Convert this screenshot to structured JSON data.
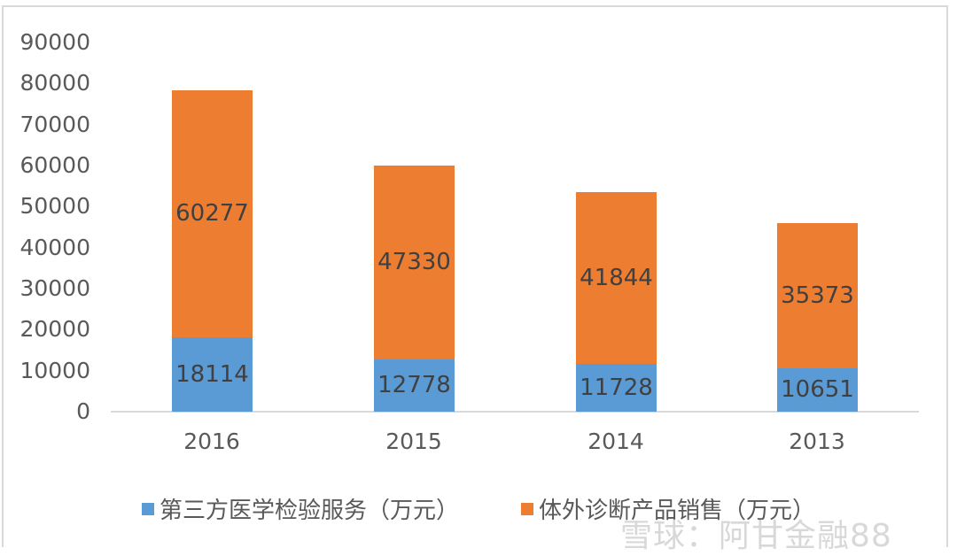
{
  "chart_data": {
    "type": "bar",
    "stacked": true,
    "title": "",
    "xlabel": "",
    "ylabel": "",
    "categories": [
      "2016",
      "2015",
      "2014",
      "2013"
    ],
    "series": [
      {
        "name": "第三方医学检验服务（万元）",
        "color": "#5b9bd5",
        "values": [
          18114,
          12778,
          11728,
          10651
        ]
      },
      {
        "name": "体外诊断产品销售（万元）",
        "color": "#ed7d31",
        "values": [
          60277,
          47330,
          41844,
          35373
        ]
      }
    ],
    "ylim": [
      0,
      90000
    ],
    "yticks": [
      "90000",
      "80000",
      "70000",
      "60000",
      "50000",
      "40000",
      "30000",
      "20000",
      "10000",
      "0"
    ],
    "grid": false,
    "legend_position": "bottom"
  },
  "labels": {
    "s0": [
      "18114",
      "12778",
      "11728",
      "10651"
    ],
    "s1": [
      "60277",
      "47330",
      "41844",
      "35373"
    ]
  },
  "legend": [
    "第三方医学检验服务（万元）",
    "体外诊断产品销售（万元）"
  ],
  "watermark": "雪球：阿甘金融88"
}
